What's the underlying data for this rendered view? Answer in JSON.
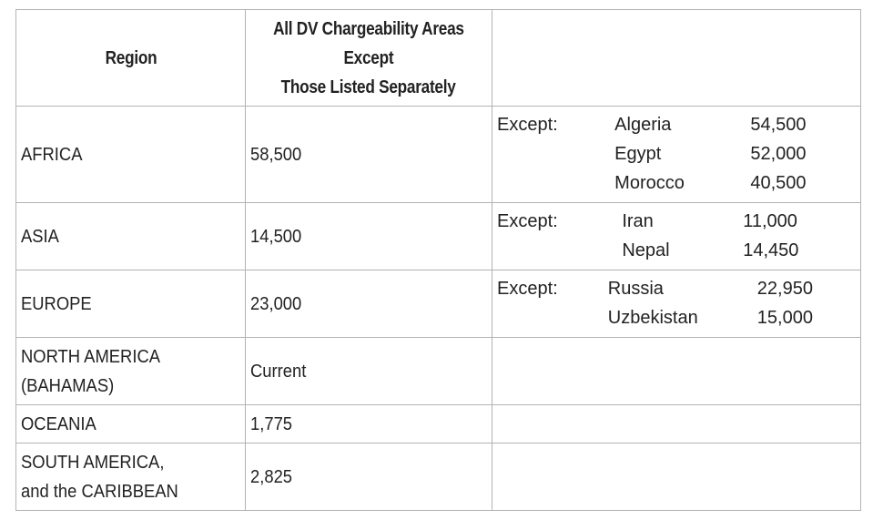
{
  "table": {
    "headers": {
      "region": "Region",
      "all_line1": "All DV Chargeability Areas",
      "all_line2": "Except",
      "all_line3": "Those Listed Separately",
      "exceptions": ""
    },
    "rows": [
      {
        "region_line1": "AFRICA",
        "region_line2": "",
        "value": "58,500",
        "exceptions": [
          {
            "prefix": "Except:",
            "country": "Algeria",
            "value": "54,500"
          },
          {
            "prefix": "",
            "country": "Egypt",
            "value": "52,000"
          },
          {
            "prefix": "",
            "country": "Morocco",
            "value": "40,500"
          }
        ]
      },
      {
        "region_line1": "ASIA",
        "region_line2": "",
        "value": "14,500",
        "exceptions": [
          {
            "prefix": "Except:",
            "country": "Iran",
            "value": "11,000"
          },
          {
            "prefix": "",
            "country": "Nepal",
            "value": "14,450"
          }
        ]
      },
      {
        "region_line1": "EUROPE",
        "region_line2": "",
        "value": "23,000",
        "exceptions": [
          {
            "prefix": "Except:",
            "country": "Russia",
            "value": "22,950"
          },
          {
            "prefix": "",
            "country": "Uzbekistan",
            "value": "15,000"
          }
        ]
      },
      {
        "region_line1": "NORTH AMERICA",
        "region_line2": "(BAHAMAS)",
        "value": "Current",
        "exceptions": []
      },
      {
        "region_line1": "OCEANIA",
        "region_line2": "",
        "value": "1,775",
        "exceptions": []
      },
      {
        "region_line1": "SOUTH AMERICA,",
        "region_line2": "and the CARIBBEAN",
        "value": "2,825",
        "exceptions": []
      }
    ]
  }
}
